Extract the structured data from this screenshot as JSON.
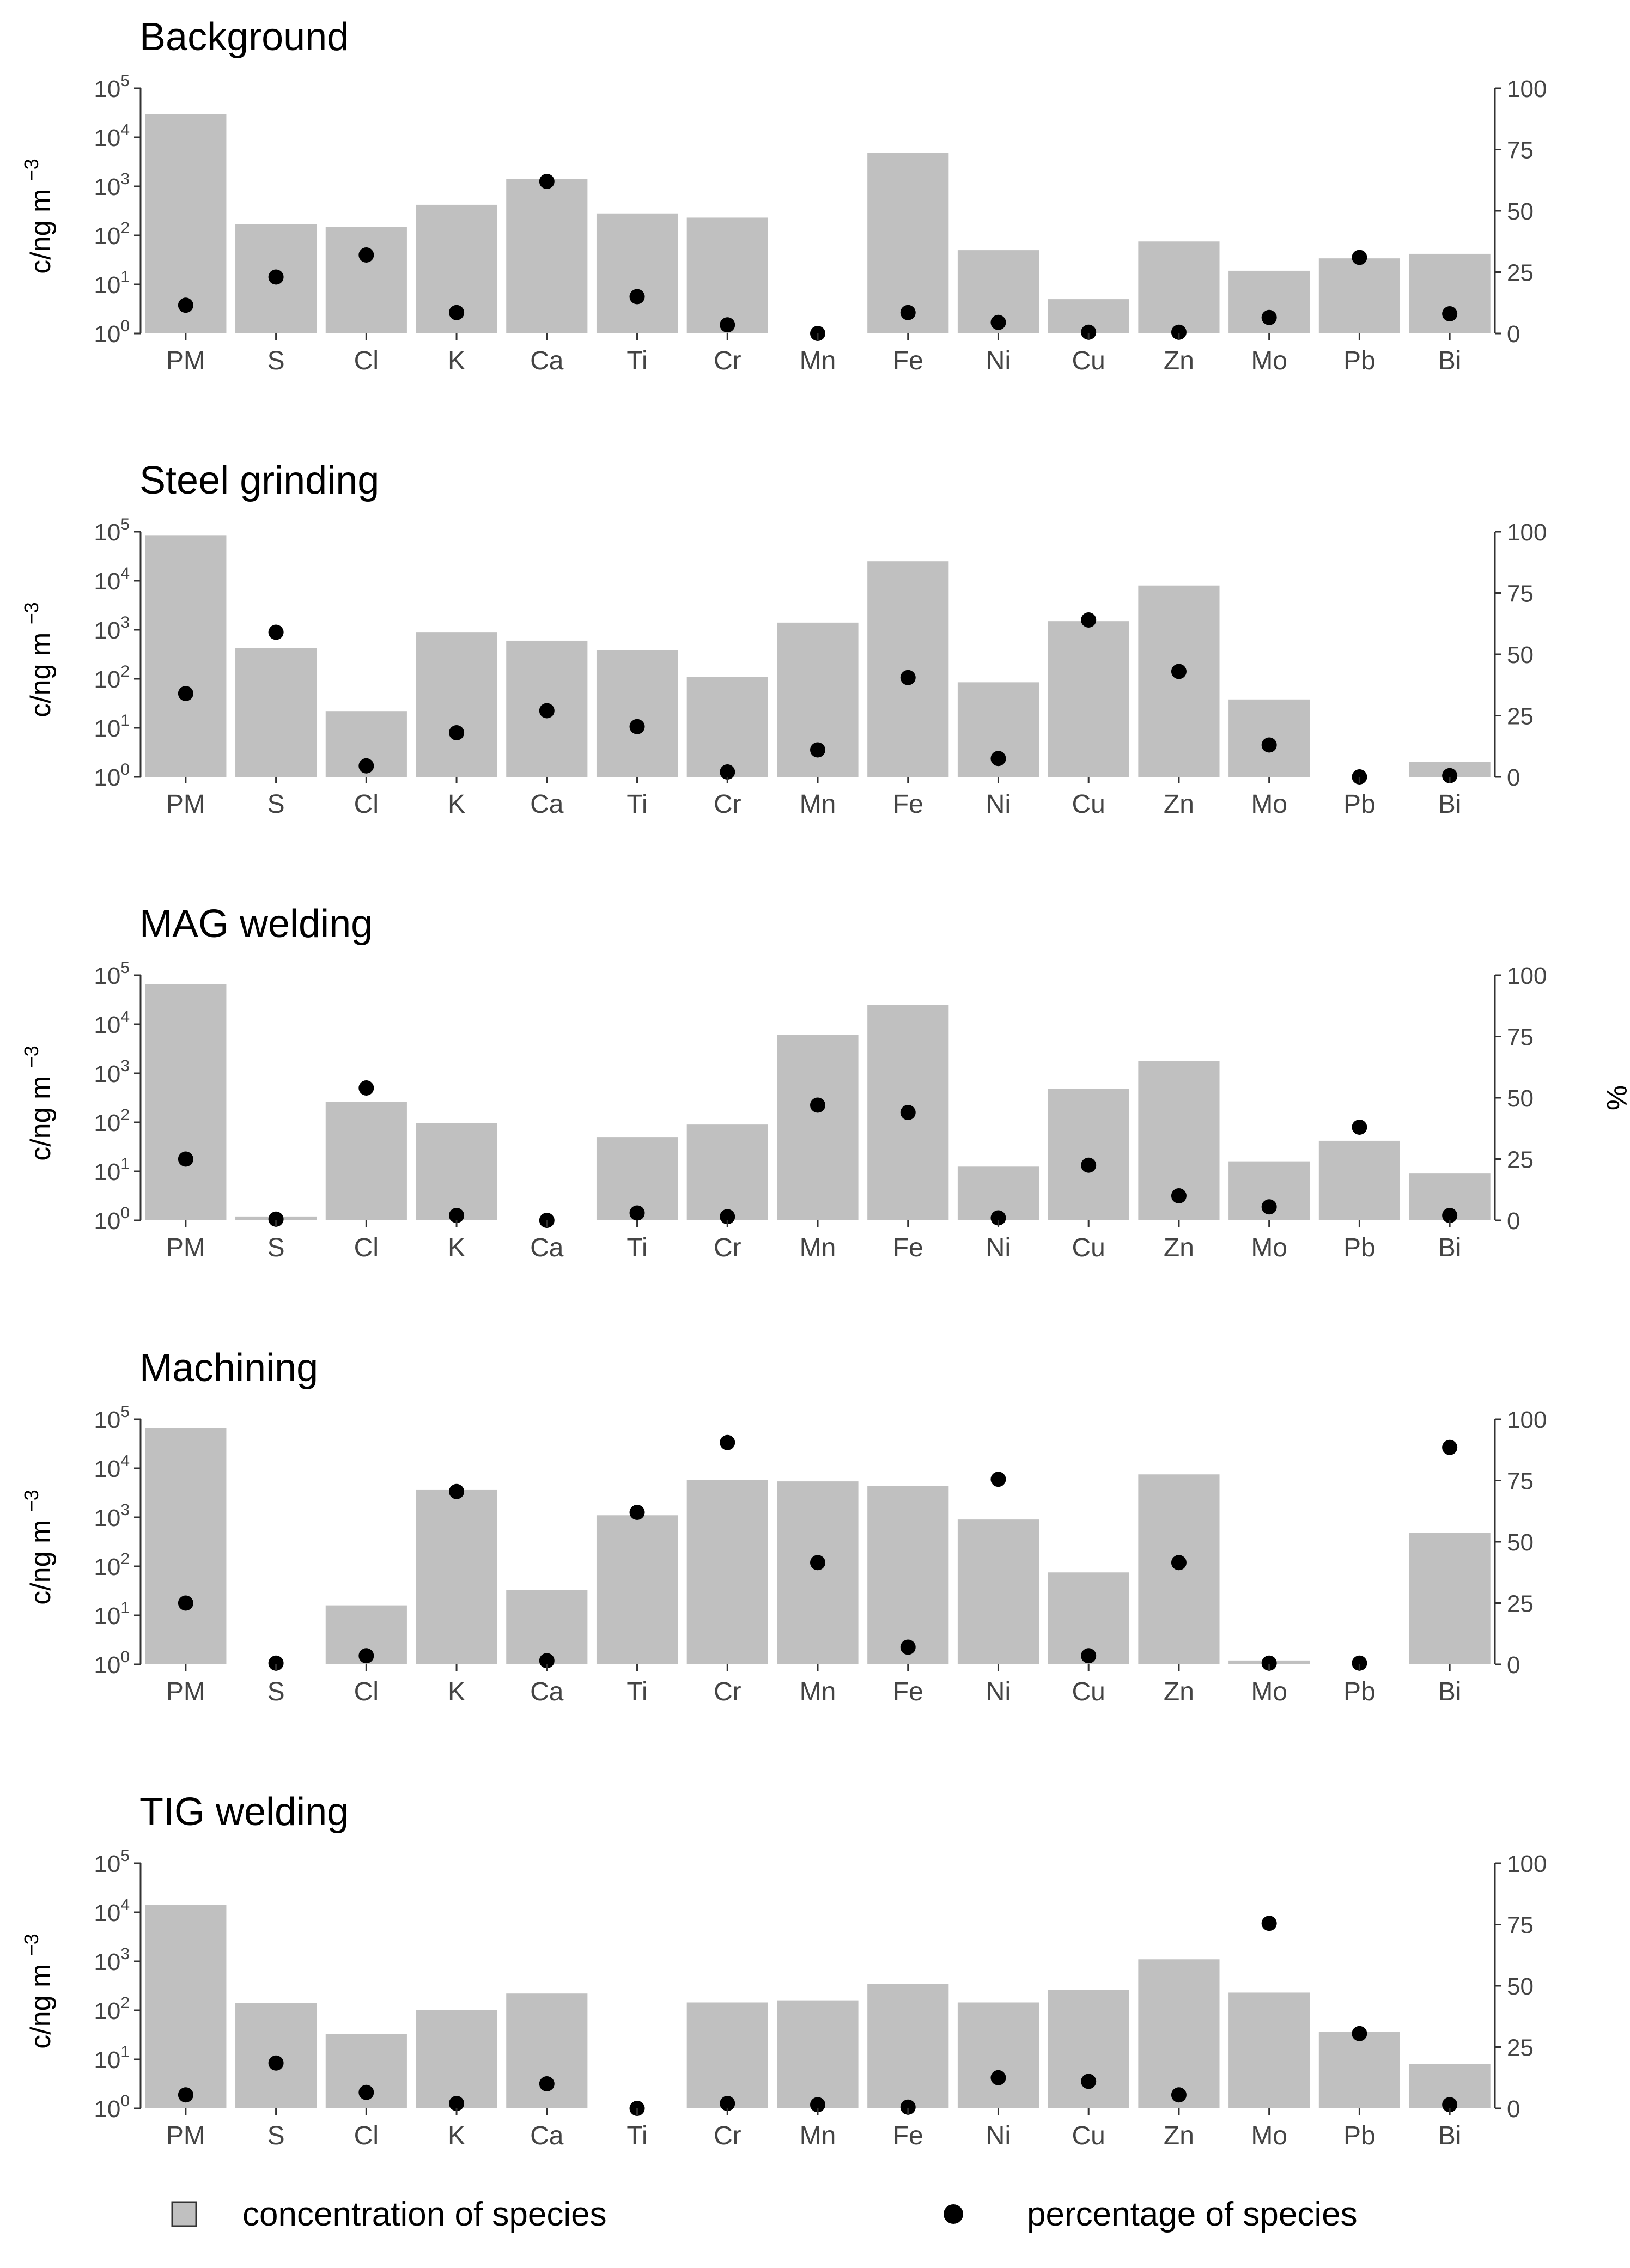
{
  "chart_data": {
    "type": "bar",
    "categories": [
      "PM",
      "S",
      "Cl",
      "K",
      "Ca",
      "Ti",
      "Cr",
      "Mn",
      "Fe",
      "Ni",
      "Cu",
      "Zn",
      "Mo",
      "Pb",
      "Bi"
    ],
    "left_axis": {
      "label": "c/ng m",
      "label_exponent": "−3",
      "scale": "log",
      "ylim": [
        1,
        100000
      ],
      "ticks": [
        {
          "base": "10",
          "exp": "0",
          "value": 1
        },
        {
          "base": "10",
          "exp": "1",
          "value": 10
        },
        {
          "base": "10",
          "exp": "2",
          "value": 100
        },
        {
          "base": "10",
          "exp": "3",
          "value": 1000
        },
        {
          "base": "10",
          "exp": "4",
          "value": 10000
        },
        {
          "base": "10",
          "exp": "5",
          "value": 100000
        }
      ]
    },
    "right_axis": {
      "label": "%",
      "ylim": [
        0,
        100
      ],
      "ticks": [
        "0",
        "25",
        "50",
        "75",
        "100"
      ]
    },
    "colors": {
      "bar": "#c0c0c0",
      "point": "#000000",
      "axis": "#333333",
      "tick_text": "#444444"
    },
    "legend": {
      "position": "bottom",
      "bar_label": "concentration of species",
      "point_label": "percentage of species"
    },
    "panels": [
      {
        "title": "Background",
        "concentration": [
          30000,
          170,
          150,
          420,
          1400,
          280,
          230,
          null,
          4800,
          50,
          5,
          75,
          19,
          34,
          42
        ],
        "percentage": [
          11.5,
          23,
          32,
          8.5,
          62,
          15,
          3.5,
          0,
          8.5,
          4.5,
          0.5,
          0.5,
          6.5,
          31,
          8
        ]
      },
      {
        "title": "Steel grinding",
        "concentration": [
          85000,
          420,
          22,
          900,
          600,
          380,
          110,
          1400,
          25000,
          85,
          1500,
          8000,
          38,
          null,
          2
        ],
        "percentage": [
          34,
          59,
          4.5,
          18,
          27,
          20.5,
          2,
          11,
          40.5,
          7.5,
          64,
          43,
          13,
          0,
          0.5
        ]
      },
      {
        "title": "MAG welding",
        "concentration": [
          65000,
          1.2,
          260,
          95,
          null,
          50,
          90,
          6000,
          25000,
          12.5,
          480,
          1800,
          16,
          42,
          9
        ],
        "percentage": [
          25,
          0.5,
          54,
          2,
          0,
          3,
          1.5,
          47,
          44,
          1,
          22.5,
          10,
          5.5,
          38,
          2
        ]
      },
      {
        "title": "Machining",
        "concentration": [
          65000,
          null,
          16,
          3600,
          33,
          1100,
          5700,
          5400,
          4300,
          900,
          75,
          7500,
          1.2,
          null,
          480
        ],
        "percentage": [
          25,
          0.5,
          3.5,
          70.5,
          1.5,
          62,
          90.5,
          41.5,
          7,
          75.5,
          3.5,
          41.5,
          0.5,
          0.5,
          88.5
        ]
      },
      {
        "title": "TIG welding",
        "concentration": [
          14000,
          140,
          33,
          100,
          220,
          null,
          145,
          160,
          350,
          145,
          260,
          1100,
          230,
          36,
          8
        ],
        "percentage": [
          5.5,
          18.5,
          6.5,
          2,
          10,
          0,
          2,
          1.5,
          0.5,
          12.5,
          11,
          5.5,
          75.5,
          30.5,
          1.5
        ]
      }
    ]
  }
}
